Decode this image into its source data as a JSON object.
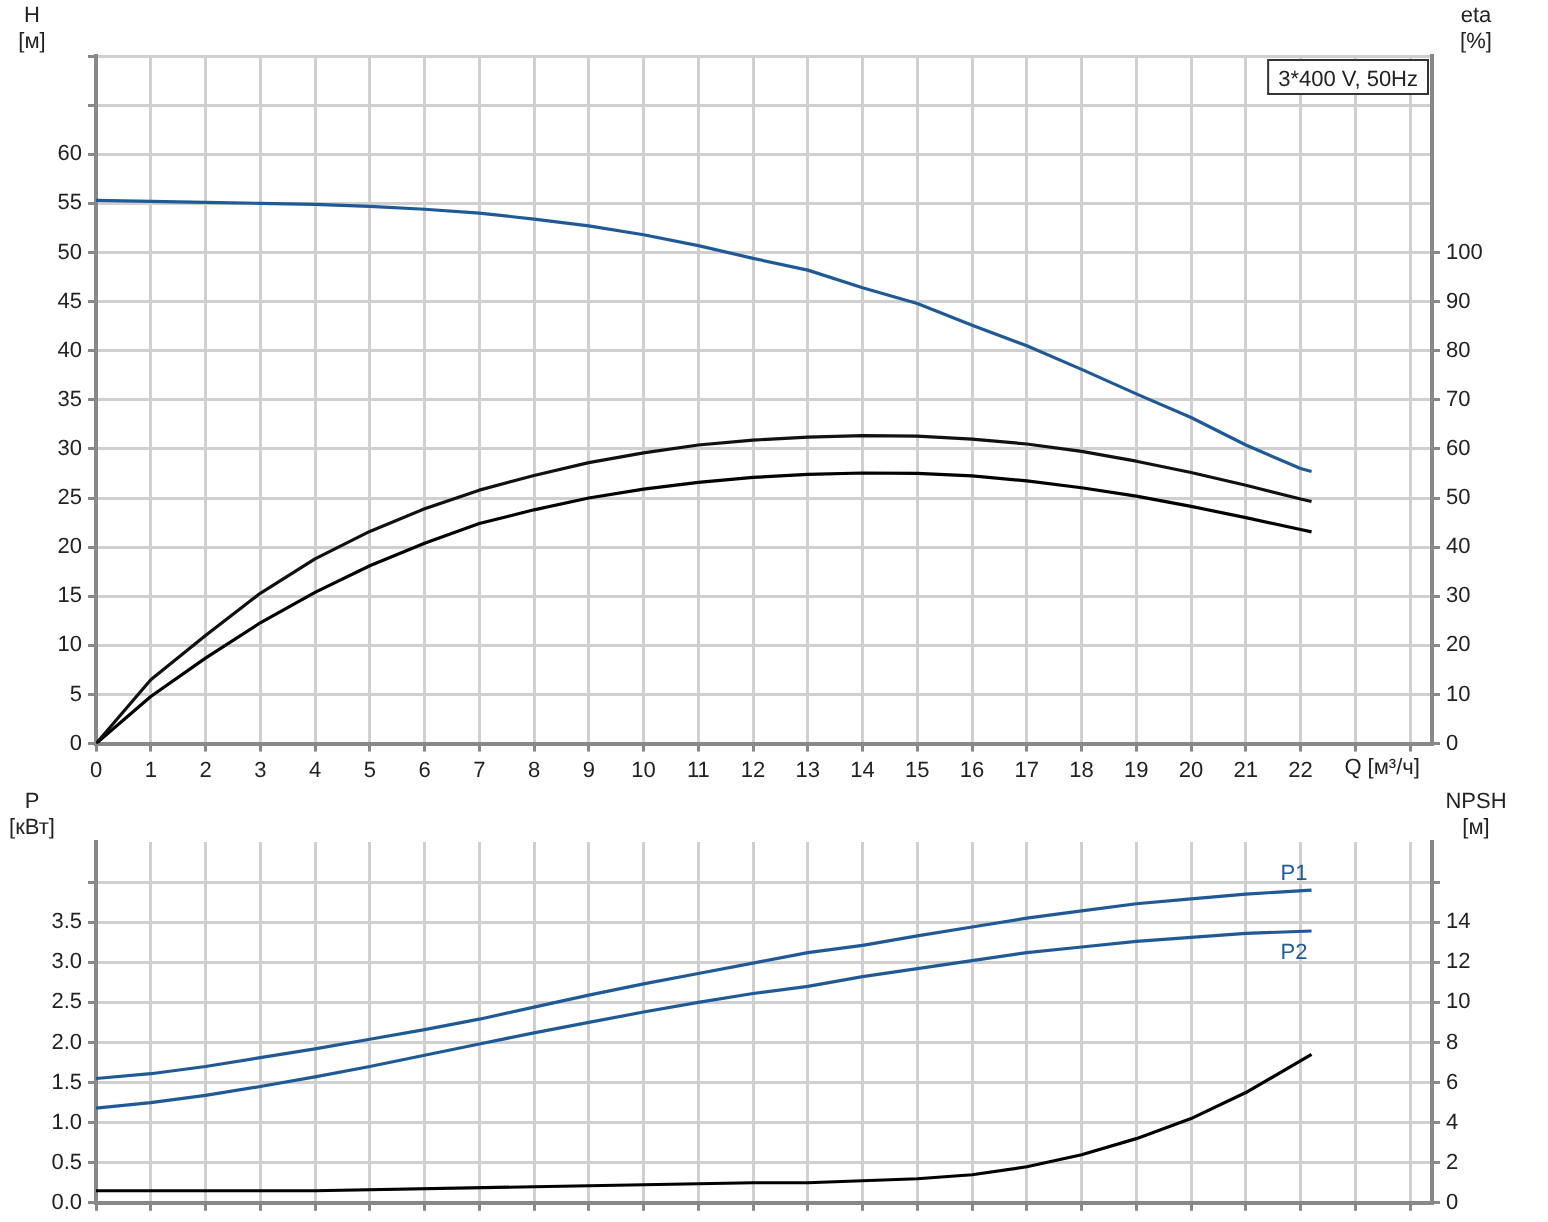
{
  "chart_data": [
    {
      "type": "line",
      "ylabel": "H [м]",
      "y2label": "eta [%]",
      "xlabel": "Q [м³/ч]",
      "annotations": [
        "3*400 V, 50Hz"
      ],
      "x": [
        0,
        1,
        2,
        3,
        4,
        5,
        6,
        7,
        8,
        9,
        10,
        11,
        12,
        13,
        14,
        15,
        16,
        17,
        18,
        19,
        20,
        21,
        22,
        22.2
      ],
      "series": [
        {
          "color": "#1f5a96",
          "values": [
            55.3,
            55.2,
            55.1,
            55.0,
            54.9,
            54.7,
            54.4,
            54.0,
            53.4,
            52.7,
            51.8,
            50.7,
            49.4,
            48.2,
            46.4,
            44.8,
            42.6,
            40.5,
            38.1,
            35.6,
            33.2,
            30.4,
            28.0,
            27.7
          ]
        },
        {
          "color": "#111111",
          "axis": "y2",
          "values": [
            0,
            13,
            22,
            30.6,
            37.6,
            43.2,
            47.8,
            51.6,
            54.6,
            57.2,
            59.2,
            60.8,
            61.8,
            62.4,
            62.7,
            62.6,
            62.0,
            61.0,
            59.5,
            57.5,
            55.2,
            52.6,
            49.8,
            49.3
          ]
        },
        {
          "color": "#000000",
          "axis": "y2",
          "values": [
            0,
            9.6,
            17.4,
            24.6,
            30.8,
            36.2,
            40.8,
            44.8,
            47.6,
            50,
            51.8,
            53.2,
            54.2,
            54.8,
            55.1,
            55,
            54.5,
            53.5,
            52.1,
            50.4,
            48.3,
            46,
            43.6,
            43.1
          ]
        }
      ],
      "xlim": [
        0,
        24.4
      ],
      "xticks": [
        0,
        1,
        2,
        3,
        4,
        5,
        6,
        7,
        8,
        9,
        10,
        11,
        12,
        13,
        14,
        15,
        16,
        17,
        18,
        19,
        20,
        21,
        22,
        {
          "value": 23,
          "label": null
        },
        {
          "value": 24,
          "label": null
        }
      ],
      "ylim": [
        0,
        70
      ],
      "yticks": [
        0,
        5,
        10,
        15,
        20,
        25,
        30,
        35,
        40,
        45,
        50,
        55,
        60,
        {
          "value": 65,
          "label": null
        },
        {
          "value": 70,
          "label": null
        }
      ],
      "y2lim": [
        0,
        140
      ],
      "y2ticks": [
        0,
        10,
        20,
        30,
        40,
        50,
        60,
        70,
        80,
        90,
        100
      ],
      "grid": true,
      "legend": false,
      "marker": "none",
      "line_style": "solid"
    },
    {
      "type": "line",
      "ylabel": "P [кВт]",
      "y2label": "NPSH [м]",
      "x": [
        0,
        1,
        2,
        3,
        4,
        5,
        6,
        7,
        8,
        9,
        10,
        11,
        12,
        13,
        14,
        15,
        16,
        17,
        18,
        19,
        20,
        21,
        22.2
      ],
      "series": [
        {
          "name": "P1",
          "color": "#1f5a96",
          "values": [
            1.55,
            1.61,
            1.7,
            1.81,
            1.92,
            2.04,
            2.16,
            2.29,
            2.44,
            2.59,
            2.73,
            2.86,
            2.99,
            3.12,
            3.21,
            3.33,
            3.44,
            3.55,
            3.64,
            3.73,
            3.79,
            3.85,
            3.9
          ]
        },
        {
          "name": "P2",
          "color": "#1f5a96",
          "values": [
            1.18,
            1.25,
            1.34,
            1.45,
            1.57,
            1.7,
            1.84,
            1.98,
            2.12,
            2.25,
            2.38,
            2.5,
            2.61,
            2.7,
            2.82,
            2.92,
            3.02,
            3.12,
            3.19,
            3.26,
            3.31,
            3.36,
            3.39
          ]
        },
        {
          "color": "#000000",
          "axis": "y2",
          "x": [
            0,
            4,
            8,
            12,
            13,
            14,
            15,
            16,
            17,
            18,
            19,
            20,
            21,
            22.2
          ],
          "values": [
            0.6,
            0.6,
            0.8,
            1.0,
            1.0,
            1.1,
            1.2,
            1.4,
            1.8,
            2.4,
            3.2,
            4.2,
            5.5,
            7.4
          ]
        }
      ],
      "xlim": [
        0,
        24.4
      ],
      "xticks": [
        0,
        1,
        2,
        3,
        4,
        5,
        6,
        7,
        8,
        9,
        10,
        11,
        12,
        13,
        14,
        15,
        16,
        17,
        18,
        19,
        20,
        21,
        22,
        23,
        24
      ],
      "ylim": [
        0,
        4.5
      ],
      "yticks": [
        {
          "value": 0,
          "label": "0.0"
        },
        0.5,
        {
          "value": 1,
          "label": "1.0"
        },
        1.5,
        {
          "value": 2,
          "label": "2.0"
        },
        2.5,
        {
          "value": 3,
          "label": "3.0"
        },
        3.5,
        {
          "value": 4,
          "label": null
        }
      ],
      "y2lim": [
        0,
        18
      ],
      "y2ticks": [
        0,
        2,
        4,
        6,
        8,
        10,
        12,
        14,
        {
          "value": 16,
          "label": null
        }
      ],
      "grid": true,
      "legend": false,
      "marker": "none",
      "line_style": "solid",
      "tick_labels": "y"
    }
  ]
}
